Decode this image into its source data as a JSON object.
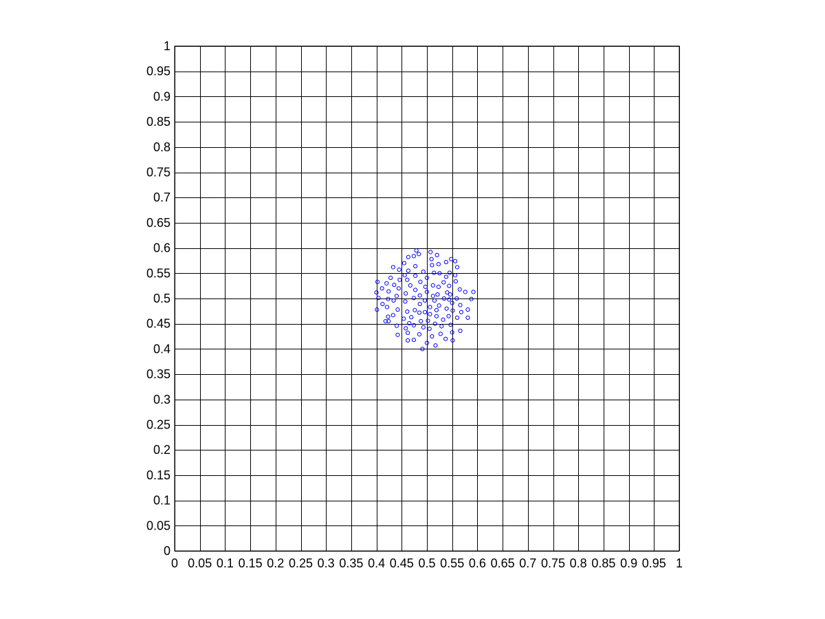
{
  "chart_data": {
    "type": "scatter",
    "title": "",
    "xlabel": "",
    "ylabel": "",
    "xlim": [
      0,
      1
    ],
    "ylim": [
      0,
      1
    ],
    "grid": true,
    "legend": "none",
    "marker": "circle-open",
    "color": "#0000ff",
    "x_ticks": [
      "0",
      "0.05",
      "0.1",
      "0.15",
      "0.2",
      "0.25",
      "0.3",
      "0.35",
      "0.4",
      "0.45",
      "0.5",
      "0.55",
      "0.6",
      "0.65",
      "0.7",
      "0.75",
      "0.8",
      "0.85",
      "0.9",
      "0.95",
      "1"
    ],
    "y_ticks": [
      "0",
      "0.05",
      "0.1",
      "0.15",
      "0.2",
      "0.25",
      "0.3",
      "0.35",
      "0.4",
      "0.45",
      "0.5",
      "0.55",
      "0.6",
      "0.65",
      "0.7",
      "0.75",
      "0.8",
      "0.85",
      "0.9",
      "0.95",
      "1"
    ],
    "series": [
      {
        "points": [
          [
            0.479,
            0.595
          ],
          [
            0.507,
            0.592
          ],
          [
            0.484,
            0.588
          ],
          [
            0.474,
            0.584
          ],
          [
            0.52,
            0.586
          ],
          [
            0.463,
            0.582
          ],
          [
            0.509,
            0.578
          ],
          [
            0.548,
            0.578
          ],
          [
            0.556,
            0.574
          ],
          [
            0.538,
            0.572
          ],
          [
            0.523,
            0.568
          ],
          [
            0.51,
            0.566
          ],
          [
            0.455,
            0.57
          ],
          [
            0.477,
            0.564
          ],
          [
            0.56,
            0.562
          ],
          [
            0.433,
            0.562
          ],
          [
            0.445,
            0.557
          ],
          [
            0.463,
            0.555
          ],
          [
            0.493,
            0.553
          ],
          [
            0.514,
            0.551
          ],
          [
            0.525,
            0.55
          ],
          [
            0.545,
            0.551
          ],
          [
            0.556,
            0.546
          ],
          [
            0.456,
            0.546
          ],
          [
            0.477,
            0.545
          ],
          [
            0.538,
            0.543
          ],
          [
            0.428,
            0.541
          ],
          [
            0.5,
            0.541
          ],
          [
            0.461,
            0.537
          ],
          [
            0.446,
            0.537
          ],
          [
            0.487,
            0.533
          ],
          [
            0.402,
            0.533
          ],
          [
            0.42,
            0.53
          ],
          [
            0.533,
            0.532
          ],
          [
            0.557,
            0.534
          ],
          [
            0.435,
            0.527
          ],
          [
            0.467,
            0.526
          ],
          [
            0.512,
            0.526
          ],
          [
            0.497,
            0.523
          ],
          [
            0.523,
            0.523
          ],
          [
            0.544,
            0.525
          ],
          [
            0.411,
            0.52
          ],
          [
            0.444,
            0.52
          ],
          [
            0.565,
            0.518
          ],
          [
            0.477,
            0.517
          ],
          [
            0.5,
            0.513
          ],
          [
            0.424,
            0.514
          ],
          [
            0.592,
            0.513
          ],
          [
            0.4,
            0.512
          ],
          [
            0.54,
            0.512
          ],
          [
            0.576,
            0.513
          ],
          [
            0.458,
            0.51
          ],
          [
            0.546,
            0.508
          ],
          [
            0.521,
            0.508
          ],
          [
            0.486,
            0.506
          ],
          [
            0.44,
            0.505
          ],
          [
            0.512,
            0.505
          ],
          [
            0.404,
            0.501
          ],
          [
            0.474,
            0.501
          ],
          [
            0.559,
            0.5
          ],
          [
            0.544,
            0.498
          ],
          [
            0.588,
            0.499
          ],
          [
            0.423,
            0.499
          ],
          [
            0.534,
            0.5
          ],
          [
            0.515,
            0.496
          ],
          [
            0.434,
            0.496
          ],
          [
            0.496,
            0.496
          ],
          [
            0.457,
            0.494
          ],
          [
            0.55,
            0.491
          ],
          [
            0.486,
            0.489
          ],
          [
            0.412,
            0.489
          ],
          [
            0.524,
            0.486
          ],
          [
            0.566,
            0.487
          ],
          [
            0.506,
            0.483
          ],
          [
            0.421,
            0.483
          ],
          [
            0.539,
            0.48
          ],
          [
            0.442,
            0.478
          ],
          [
            0.476,
            0.477
          ],
          [
            0.581,
            0.478
          ],
          [
            0.401,
            0.478
          ],
          [
            0.519,
            0.477
          ],
          [
            0.461,
            0.474
          ],
          [
            0.551,
            0.476
          ],
          [
            0.496,
            0.473
          ],
          [
            0.568,
            0.473
          ],
          [
            0.485,
            0.472
          ],
          [
            0.506,
            0.469
          ],
          [
            0.433,
            0.467
          ],
          [
            0.519,
            0.465
          ],
          [
            0.543,
            0.465
          ],
          [
            0.423,
            0.464
          ],
          [
            0.469,
            0.463
          ],
          [
            0.581,
            0.462
          ],
          [
            0.454,
            0.46
          ],
          [
            0.56,
            0.462
          ],
          [
            0.532,
            0.458
          ],
          [
            0.502,
            0.456
          ],
          [
            0.488,
            0.455
          ],
          [
            0.418,
            0.455
          ],
          [
            0.424,
            0.455
          ],
          [
            0.465,
            0.451
          ],
          [
            0.516,
            0.45
          ],
          [
            0.547,
            0.448
          ],
          [
            0.44,
            0.446
          ],
          [
            0.474,
            0.447
          ],
          [
            0.529,
            0.445
          ],
          [
            0.493,
            0.443
          ],
          [
            0.458,
            0.441
          ],
          [
            0.505,
            0.44
          ],
          [
            0.566,
            0.436
          ],
          [
            0.462,
            0.432
          ],
          [
            0.55,
            0.433
          ],
          [
            0.527,
            0.43
          ],
          [
            0.485,
            0.429
          ],
          [
            0.442,
            0.428
          ],
          [
            0.51,
            0.425
          ],
          [
            0.537,
            0.42
          ],
          [
            0.551,
            0.417
          ],
          [
            0.474,
            0.418
          ],
          [
            0.462,
            0.417
          ],
          [
            0.5,
            0.412
          ],
          [
            0.517,
            0.407
          ],
          [
            0.491,
            0.4
          ]
        ]
      }
    ]
  }
}
